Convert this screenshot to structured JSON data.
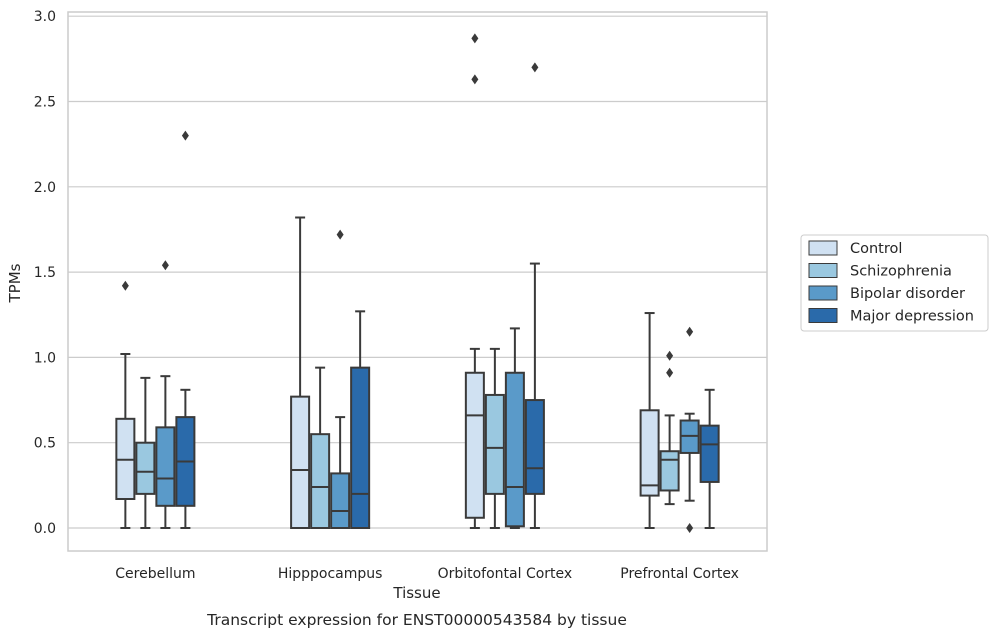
{
  "caption": "Transcript expression for ENST00000543584 by tissue",
  "chart_data": {
    "type": "box",
    "xlabel": "Tissue",
    "ylabel": "TPMs",
    "ylim": [
      -0.14,
      3.02
    ],
    "yticks": [
      "0.0",
      "0.5",
      "1.0",
      "1.5",
      "2.0",
      "2.5",
      "3.0"
    ],
    "grid": "horizontal",
    "legend_position": "right",
    "categories": [
      "Cerebellum",
      "Hipppocampus",
      "Orbitofontal Cortex",
      "Prefrontal Cortex"
    ],
    "series": [
      {
        "name": "Control",
        "color": "#d0e1f2",
        "boxes": [
          {
            "whislo": 0.0,
            "q1": 0.17,
            "median": 0.4,
            "q3": 0.64,
            "whishi": 1.02,
            "fliers": [
              1.42
            ]
          },
          {
            "whislo": 0.0,
            "q1": 0.0,
            "median": 0.34,
            "q3": 0.77,
            "whishi": 1.82,
            "fliers": []
          },
          {
            "whislo": 0.0,
            "q1": 0.06,
            "median": 0.66,
            "q3": 0.91,
            "whishi": 1.05,
            "fliers": [
              2.63,
              2.87
            ]
          },
          {
            "whislo": 0.0,
            "q1": 0.19,
            "median": 0.25,
            "q3": 0.69,
            "whishi": 1.26,
            "fliers": []
          }
        ]
      },
      {
        "name": "Schizophrenia",
        "color": "#9ac8e0",
        "boxes": [
          {
            "whislo": 0.0,
            "q1": 0.2,
            "median": 0.33,
            "q3": 0.5,
            "whishi": 0.88,
            "fliers": []
          },
          {
            "whislo": 0.0,
            "q1": 0.0,
            "median": 0.24,
            "q3": 0.55,
            "whishi": 0.94,
            "fliers": []
          },
          {
            "whislo": 0.0,
            "q1": 0.2,
            "median": 0.47,
            "q3": 0.78,
            "whishi": 1.05,
            "fliers": []
          },
          {
            "whislo": 0.14,
            "q1": 0.22,
            "median": 0.4,
            "q3": 0.45,
            "whishi": 0.66,
            "fliers": [
              0.91,
              1.01
            ]
          }
        ]
      },
      {
        "name": "Bipolar disorder",
        "color": "#5a9ac9",
        "boxes": [
          {
            "whislo": 0.0,
            "q1": 0.13,
            "median": 0.29,
            "q3": 0.59,
            "whishi": 0.89,
            "fliers": [
              1.54
            ]
          },
          {
            "whislo": 0.0,
            "q1": 0.0,
            "median": 0.1,
            "q3": 0.32,
            "whishi": 0.65,
            "fliers": [
              1.72
            ]
          },
          {
            "whislo": 0.0,
            "q1": 0.01,
            "median": 0.24,
            "q3": 0.91,
            "whishi": 1.17,
            "fliers": []
          },
          {
            "whislo": 0.16,
            "q1": 0.44,
            "median": 0.54,
            "q3": 0.63,
            "whishi": 0.67,
            "fliers": [
              0.0,
              1.15
            ]
          }
        ]
      },
      {
        "name": "Major depression",
        "color": "#2a6aaa",
        "boxes": [
          {
            "whislo": 0.0,
            "q1": 0.13,
            "median": 0.39,
            "q3": 0.65,
            "whishi": 0.81,
            "fliers": [
              2.3
            ]
          },
          {
            "whislo": 0.0,
            "q1": 0.0,
            "median": 0.2,
            "q3": 0.94,
            "whishi": 1.27,
            "fliers": []
          },
          {
            "whislo": 0.0,
            "q1": 0.2,
            "median": 0.35,
            "q3": 0.75,
            "whishi": 1.55,
            "fliers": [
              2.7
            ]
          },
          {
            "whislo": 0.0,
            "q1": 0.27,
            "median": 0.49,
            "q3": 0.6,
            "whishi": 0.81,
            "fliers": []
          }
        ]
      }
    ]
  }
}
